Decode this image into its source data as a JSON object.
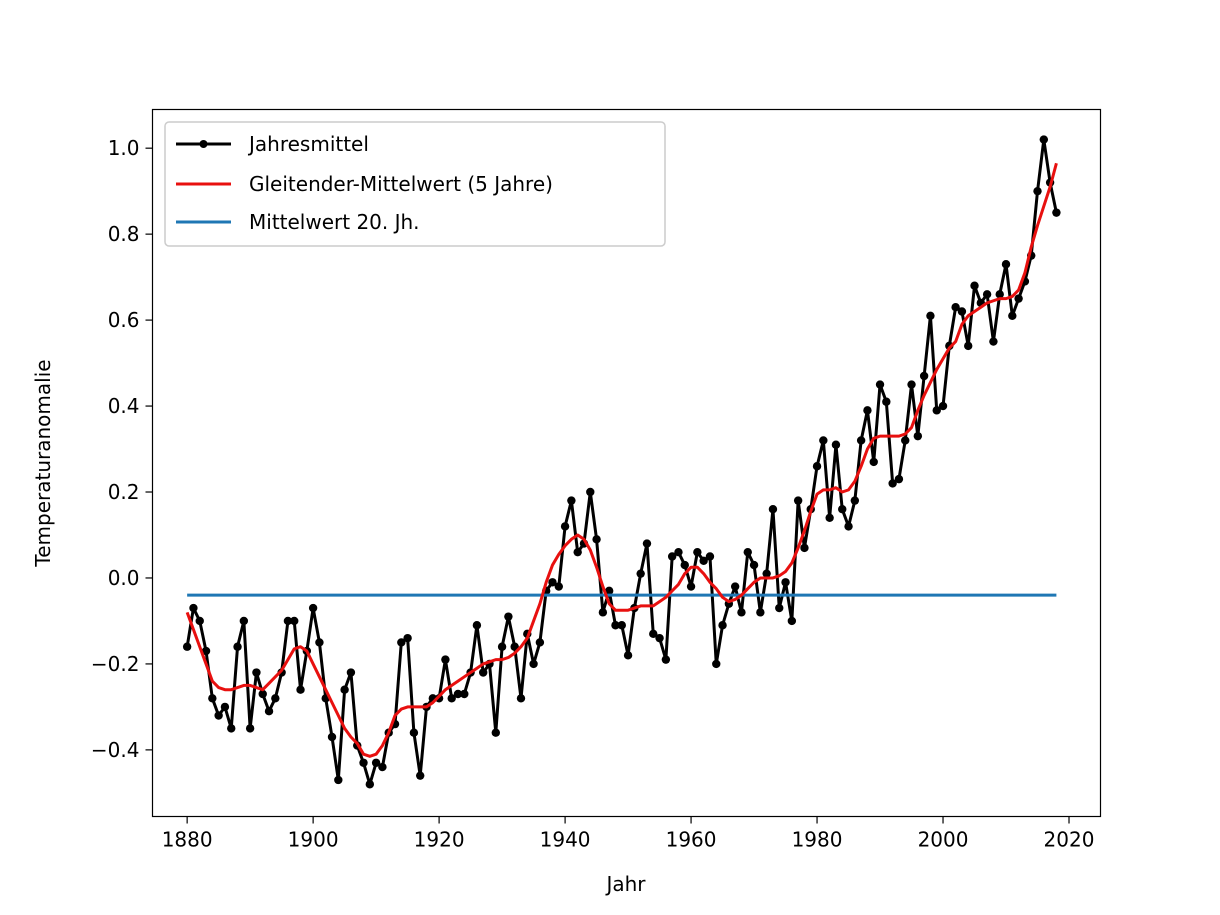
{
  "chart_data": {
    "type": "line",
    "xlabel": "Jahr",
    "ylabel": "Temperaturanomalie",
    "xlim": [
      1874.5,
      2025
    ],
    "ylim": [
      -0.555,
      1.09
    ],
    "xticks": [
      1880,
      1900,
      1920,
      1940,
      1960,
      1980,
      2000,
      2020
    ],
    "xtick_labels": [
      "1880",
      "1900",
      "1920",
      "1940",
      "1960",
      "1980",
      "2000",
      "2020"
    ],
    "yticks": [
      -0.4,
      -0.2,
      0.0,
      0.2,
      0.4,
      0.6,
      0.8,
      1.0
    ],
    "ytick_labels": [
      "−0.4",
      "−0.2",
      "0.0",
      "0.2",
      "0.4",
      "0.6",
      "0.8",
      "1.0"
    ],
    "grid": false,
    "legend_position": "top-left",
    "x": [
      1880,
      1881,
      1882,
      1883,
      1884,
      1885,
      1886,
      1887,
      1888,
      1889,
      1890,
      1891,
      1892,
      1893,
      1894,
      1895,
      1896,
      1897,
      1898,
      1899,
      1900,
      1901,
      1902,
      1903,
      1904,
      1905,
      1906,
      1907,
      1908,
      1909,
      1910,
      1911,
      1912,
      1913,
      1914,
      1915,
      1916,
      1917,
      1918,
      1919,
      1920,
      1921,
      1922,
      1923,
      1924,
      1925,
      1926,
      1927,
      1928,
      1929,
      1930,
      1931,
      1932,
      1933,
      1934,
      1935,
      1936,
      1937,
      1938,
      1939,
      1940,
      1941,
      1942,
      1943,
      1944,
      1945,
      1946,
      1947,
      1948,
      1949,
      1950,
      1951,
      1952,
      1953,
      1954,
      1955,
      1956,
      1957,
      1958,
      1959,
      1960,
      1961,
      1962,
      1963,
      1964,
      1965,
      1966,
      1967,
      1968,
      1969,
      1970,
      1971,
      1972,
      1973,
      1974,
      1975,
      1976,
      1977,
      1978,
      1979,
      1980,
      1981,
      1982,
      1983,
      1984,
      1985,
      1986,
      1987,
      1988,
      1989,
      1990,
      1991,
      1992,
      1993,
      1994,
      1995,
      1996,
      1997,
      1998,
      1999,
      2000,
      2001,
      2002,
      2003,
      2004,
      2005,
      2006,
      2007,
      2008,
      2009,
      2010,
      2011,
      2012,
      2013,
      2014,
      2015,
      2016,
      2017,
      2018
    ],
    "series": [
      {
        "name": "Jahresmittel",
        "color": "#000000",
        "style": "line-with-markers",
        "values": [
          -0.16,
          -0.07,
          -0.1,
          -0.17,
          -0.28,
          -0.32,
          -0.3,
          -0.35,
          -0.16,
          -0.1,
          -0.35,
          -0.22,
          -0.27,
          -0.31,
          -0.28,
          -0.22,
          -0.1,
          -0.1,
          -0.26,
          -0.17,
          -0.07,
          -0.15,
          -0.28,
          -0.37,
          -0.47,
          -0.26,
          -0.22,
          -0.39,
          -0.43,
          -0.48,
          -0.43,
          -0.44,
          -0.36,
          -0.34,
          -0.15,
          -0.14,
          -0.36,
          -0.46,
          -0.3,
          -0.28,
          -0.28,
          -0.19,
          -0.28,
          -0.27,
          -0.27,
          -0.22,
          -0.11,
          -0.22,
          -0.2,
          -0.36,
          -0.16,
          -0.09,
          -0.16,
          -0.28,
          -0.13,
          -0.2,
          -0.15,
          -0.03,
          -0.01,
          -0.02,
          0.12,
          0.18,
          0.06,
          0.08,
          0.2,
          0.09,
          -0.08,
          -0.03,
          -0.11,
          -0.11,
          -0.18,
          -0.07,
          0.01,
          0.08,
          -0.13,
          -0.14,
          -0.19,
          0.05,
          0.06,
          0.03,
          -0.02,
          0.06,
          0.04,
          0.05,
          -0.2,
          -0.11,
          -0.06,
          -0.02,
          -0.08,
          0.06,
          0.03,
          -0.08,
          0.01,
          0.16,
          -0.07,
          -0.01,
          -0.1,
          0.18,
          0.07,
          0.16,
          0.26,
          0.32,
          0.14,
          0.31,
          0.16,
          0.12,
          0.18,
          0.32,
          0.39,
          0.27,
          0.45,
          0.41,
          0.22,
          0.23,
          0.32,
          0.45,
          0.33,
          0.47,
          0.61,
          0.39,
          0.4,
          0.54,
          0.63,
          0.62,
          0.54,
          0.68,
          0.64,
          0.66,
          0.55,
          0.66,
          0.73,
          0.61,
          0.65,
          0.69,
          0.75,
          0.9,
          1.02,
          0.92,
          0.85
        ]
      },
      {
        "name": "Gleitender-Mittelwert (5 Jahre)",
        "color": "#e8100f",
        "style": "line",
        "values": [
          -0.08,
          -0.12,
          -0.16,
          -0.2,
          -0.24,
          -0.255,
          -0.26,
          -0.26,
          -0.255,
          -0.25,
          -0.25,
          -0.255,
          -0.26,
          -0.245,
          -0.23,
          -0.215,
          -0.19,
          -0.165,
          -0.16,
          -0.17,
          -0.2,
          -0.23,
          -0.26,
          -0.29,
          -0.32,
          -0.35,
          -0.37,
          -0.385,
          -0.41,
          -0.415,
          -0.41,
          -0.39,
          -0.36,
          -0.32,
          -0.305,
          -0.3,
          -0.3,
          -0.3,
          -0.3,
          -0.29,
          -0.275,
          -0.26,
          -0.25,
          -0.24,
          -0.23,
          -0.22,
          -0.21,
          -0.2,
          -0.195,
          -0.19,
          -0.19,
          -0.185,
          -0.175,
          -0.16,
          -0.14,
          -0.1,
          -0.06,
          -0.01,
          0.03,
          0.055,
          0.075,
          0.09,
          0.1,
          0.09,
          0.065,
          0.025,
          -0.02,
          -0.06,
          -0.075,
          -0.075,
          -0.075,
          -0.07,
          -0.065,
          -0.065,
          -0.065,
          -0.055,
          -0.045,
          -0.03,
          -0.015,
          0.01,
          0.025,
          0.025,
          0.01,
          -0.01,
          -0.025,
          -0.045,
          -0.055,
          -0.05,
          -0.04,
          -0.025,
          -0.01,
          0.0,
          0.0,
          0.0,
          0.005,
          0.015,
          0.035,
          0.07,
          0.11,
          0.155,
          0.195,
          0.205,
          0.205,
          0.21,
          0.2,
          0.205,
          0.225,
          0.26,
          0.3,
          0.325,
          0.33,
          0.33,
          0.33,
          0.33,
          0.335,
          0.35,
          0.39,
          0.425,
          0.455,
          0.485,
          0.51,
          0.535,
          0.55,
          0.59,
          0.61,
          0.62,
          0.63,
          0.64,
          0.645,
          0.65,
          0.65,
          0.655,
          0.67,
          0.71,
          0.77,
          0.82,
          0.865,
          0.91,
          0.965
        ]
      },
      {
        "name": "Mittelwert 20. Jh.",
        "color": "#1f77b4",
        "style": "line",
        "x": [
          1880,
          2018
        ],
        "values": [
          -0.04,
          -0.04
        ]
      }
    ]
  }
}
